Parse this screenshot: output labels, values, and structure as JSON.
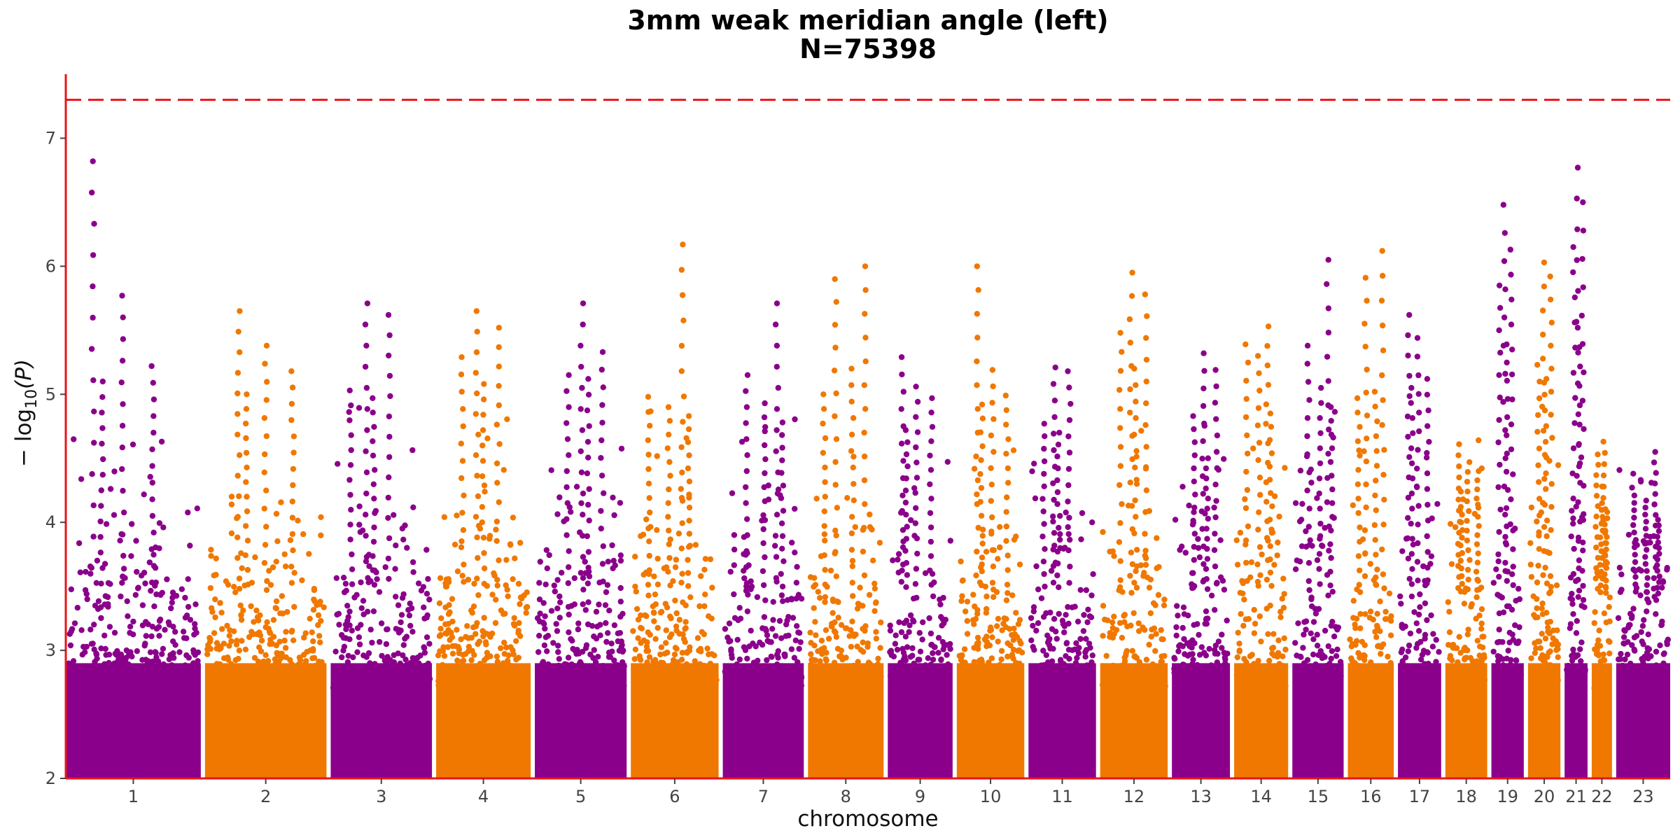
{
  "chart_data": {
    "type": "scatter",
    "title": "3mm weak meridian angle (left)",
    "subtitle": "N=75398",
    "xlabel": "chromosome",
    "ylabel_prefix": "− log",
    "ylabel_sub": "10",
    "ylabel_suffix": "(P)",
    "ylim": [
      2,
      7.5
    ],
    "yticks": [
      "2",
      "3",
      "4",
      "5",
      "6",
      "7"
    ],
    "significance_threshold": 7.3,
    "grid": false,
    "colors": {
      "odd": "#8b008b",
      "even": "#f07800",
      "axis": "#e8141a",
      "threshold": "#e8141a"
    },
    "chromosomes": [
      {
        "label": "1",
        "color": "odd",
        "top_hits": [
          6.82,
          5.77,
          5.22,
          5.1
        ]
      },
      {
        "label": "2",
        "color": "even",
        "top_hits": [
          5.65,
          5.38,
          5.18,
          5.0
        ]
      },
      {
        "label": "3",
        "color": "odd",
        "top_hits": [
          5.71,
          5.62,
          5.03,
          4.97
        ]
      },
      {
        "label": "4",
        "color": "even",
        "top_hits": [
          5.65,
          5.52,
          5.29,
          5.08
        ]
      },
      {
        "label": "5",
        "color": "odd",
        "top_hits": [
          5.71,
          5.33,
          5.15,
          5.12
        ]
      },
      {
        "label": "6",
        "color": "even",
        "top_hits": [
          6.17,
          4.98,
          4.9,
          4.83
        ]
      },
      {
        "label": "7",
        "color": "odd",
        "top_hits": [
          5.71,
          5.15,
          4.93,
          4.78
        ]
      },
      {
        "label": "8",
        "color": "even",
        "top_hits": [
          6.0,
          5.9,
          5.2,
          5.0
        ]
      },
      {
        "label": "9",
        "color": "odd",
        "top_hits": [
          5.29,
          5.06,
          4.97,
          4.72
        ]
      },
      {
        "label": "10",
        "color": "even",
        "top_hits": [
          6.0,
          5.19,
          4.99,
          4.92
        ]
      },
      {
        "label": "11",
        "color": "odd",
        "top_hits": [
          5.21,
          5.18,
          4.77,
          4.7
        ]
      },
      {
        "label": "12",
        "color": "even",
        "top_hits": [
          5.95,
          5.78,
          5.48,
          5.2
        ]
      },
      {
        "label": "13",
        "color": "odd",
        "top_hits": [
          5.32,
          5.19,
          4.83,
          4.5
        ]
      },
      {
        "label": "14",
        "color": "even",
        "top_hits": [
          5.53,
          5.39,
          5.3,
          4.85
        ]
      },
      {
        "label": "15",
        "color": "odd",
        "top_hits": [
          6.05,
          5.38,
          5.05,
          4.9
        ]
      },
      {
        "label": "16",
        "color": "even",
        "top_hits": [
          6.12,
          5.91,
          5.02,
          4.97
        ]
      },
      {
        "label": "17",
        "color": "odd",
        "top_hits": [
          5.62,
          5.44,
          5.12,
          5.05
        ]
      },
      {
        "label": "18",
        "color": "even",
        "top_hits": [
          4.61,
          4.47,
          4.4,
          4.24
        ]
      },
      {
        "label": "19",
        "color": "odd",
        "top_hits": [
          6.48,
          6.13,
          5.85,
          5.39
        ]
      },
      {
        "label": "20",
        "color": "even",
        "top_hits": [
          6.03,
          5.92,
          5.23,
          5.12
        ]
      },
      {
        "label": "21",
        "color": "odd",
        "top_hits": [
          6.77,
          6.5,
          6.15,
          5.52
        ]
      },
      {
        "label": "22",
        "color": "even",
        "top_hits": [
          4.63,
          4.53,
          4.15,
          4.08
        ]
      },
      {
        "label": "23",
        "color": "odd",
        "top_hits": [
          4.55,
          4.21,
          4.17,
          4.02
        ]
      }
    ]
  }
}
